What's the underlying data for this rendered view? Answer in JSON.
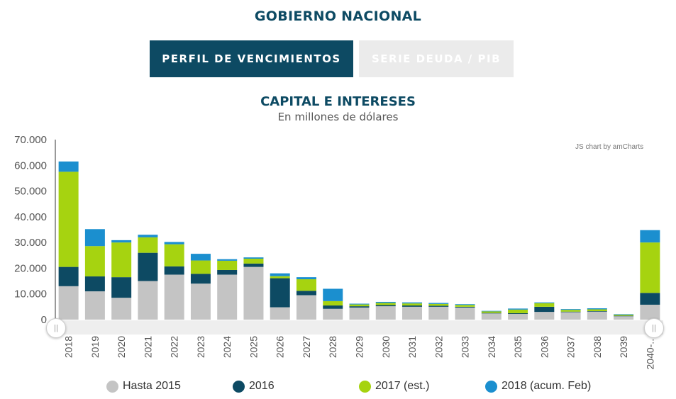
{
  "header": {
    "title": "GOBIERNO NACIONAL"
  },
  "tabs": [
    {
      "label": "PERFIL DE VENCIMIENTOS",
      "active": true
    },
    {
      "label": "SERIE DEUDA / PIB",
      "active": false
    }
  ],
  "credit": "JS chart by amCharts",
  "chart_data": {
    "type": "bar",
    "stacked": true,
    "title": "CAPITAL E INTERESES",
    "subtitle": "En millones de dólares",
    "categories": [
      "2018",
      "2019",
      "2020",
      "2021",
      "2022",
      "2023",
      "2024",
      "2025",
      "2026",
      "2027",
      "2028",
      "2029",
      "2030",
      "2031",
      "2032",
      "2033",
      "2034",
      "2035",
      "2036",
      "2037",
      "2038",
      "2039",
      "2040-..."
    ],
    "ylim": [
      0,
      70000
    ],
    "yticks": [
      "0",
      "10.000",
      "20.000",
      "30.000",
      "40.000",
      "50.000",
      "60.000",
      "70.000"
    ],
    "ytick_values": [
      0,
      10000,
      20000,
      30000,
      40000,
      50000,
      60000,
      70000
    ],
    "legend_position": "bottom",
    "series": [
      {
        "name": "Hasta 2015",
        "color": "#c4c4c4",
        "values": [
          13000,
          11000,
          8500,
          15000,
          17500,
          14000,
          17500,
          20500,
          4800,
          9500,
          4200,
          4700,
          5200,
          5000,
          5000,
          4700,
          2400,
          2200,
          3000,
          2900,
          3100,
          1300,
          5800
        ]
      },
      {
        "name": "2016",
        "color": "#0d4a63",
        "values": [
          7500,
          5800,
          8000,
          11000,
          3200,
          3800,
          1800,
          1300,
          11300,
          1700,
          1300,
          500,
          500,
          500,
          400,
          300,
          200,
          300,
          2000,
          200,
          200,
          200,
          4600
        ]
      },
      {
        "name": "2017 (est.)",
        "color": "#a6d310",
        "values": [
          37000,
          11800,
          13500,
          6000,
          8600,
          5200,
          3600,
          1900,
          800,
          4500,
          1700,
          700,
          800,
          800,
          700,
          700,
          600,
          1400,
          1400,
          700,
          700,
          400,
          19600
        ]
      },
      {
        "name": "2018 (acum. Feb)",
        "color": "#1b8fcf",
        "values": [
          4000,
          6600,
          900,
          1000,
          900,
          2600,
          600,
          500,
          1100,
          800,
          4800,
          300,
          400,
          400,
          400,
          300,
          200,
          400,
          300,
          300,
          400,
          200,
          4800
        ]
      }
    ]
  }
}
